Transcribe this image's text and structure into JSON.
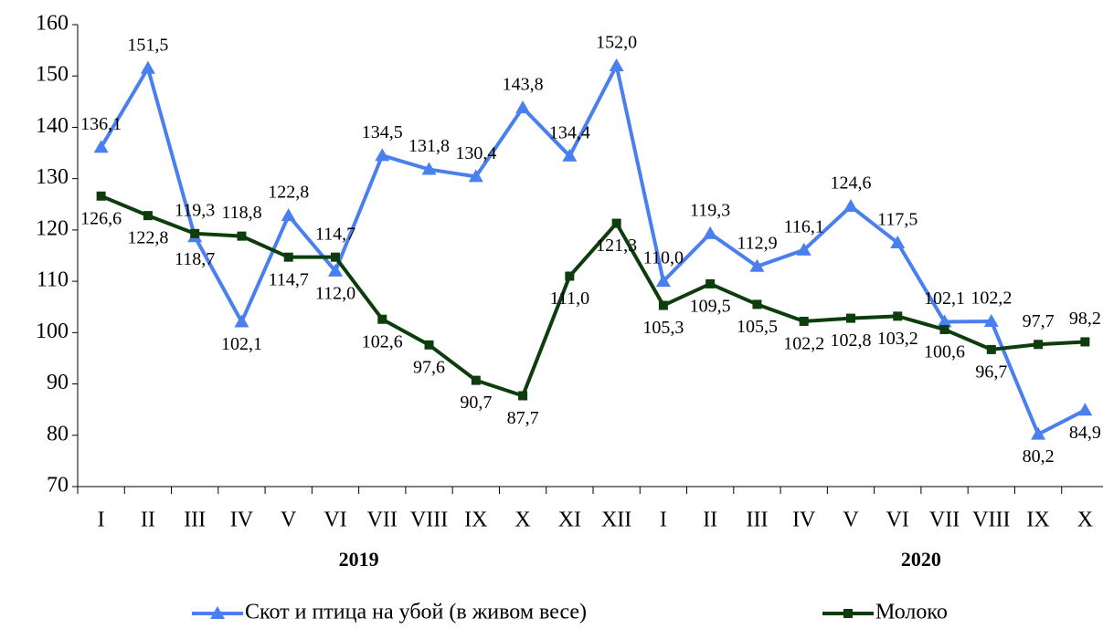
{
  "chart_data": {
    "type": "line",
    "categories": [
      "I",
      "II",
      "III",
      "IV",
      "V",
      "VI",
      "VII",
      "VIII",
      "IX",
      "X",
      "XI",
      "XII",
      "I",
      "II",
      "III",
      "IV",
      "V",
      "VI",
      "VII",
      "VIII",
      "IX",
      "X"
    ],
    "year_labels": [
      "2019",
      "2020"
    ],
    "series": [
      {
        "name": "Скот и птица на убой (в живом весе)",
        "color": "#4a7ff0",
        "marker": "triangle",
        "values": [
          136.1,
          151.5,
          118.7,
          102.1,
          122.8,
          112.0,
          134.5,
          131.8,
          130.4,
          143.8,
          134.4,
          152.0,
          110.0,
          119.3,
          112.9,
          116.1,
          124.6,
          117.5,
          102.1,
          102.2,
          80.2,
          84.9
        ],
        "value_labels": [
          "136,1",
          "151,5",
          "118,7",
          "102,1",
          "122,8",
          "112,0",
          "134,5",
          "131,8",
          "130,4",
          "143,8",
          "134,4",
          "152,0",
          "110,0",
          "119,3",
          "112,9",
          "116,1",
          "124,6",
          "117,5",
          "102,1",
          "102,2",
          "80,2",
          "84,9"
        ]
      },
      {
        "name": "Молоко",
        "color": "#0d3d0d",
        "marker": "square",
        "values": [
          126.6,
          122.8,
          119.3,
          118.8,
          114.7,
          114.7,
          102.6,
          97.6,
          90.7,
          87.7,
          111.0,
          121.3,
          105.3,
          109.5,
          105.5,
          102.2,
          102.8,
          103.2,
          100.6,
          96.7,
          97.7,
          98.2
        ],
        "value_labels": [
          "126,6",
          "122,8",
          "119,3",
          "118,8",
          "114,7",
          "114,7",
          "102,6",
          "97,6",
          "90,7",
          "87,7",
          "111,0",
          "121,3",
          "105,3",
          "109,5",
          "105,5",
          "102,2",
          "102,8",
          "103,2",
          "100,6",
          "96,7",
          "97,7",
          "98,2"
        ]
      }
    ],
    "ylim": [
      70,
      160
    ],
    "yticks": [
      70,
      80,
      90,
      100,
      110,
      120,
      130,
      140,
      150,
      160
    ],
    "legend": "bottom"
  }
}
